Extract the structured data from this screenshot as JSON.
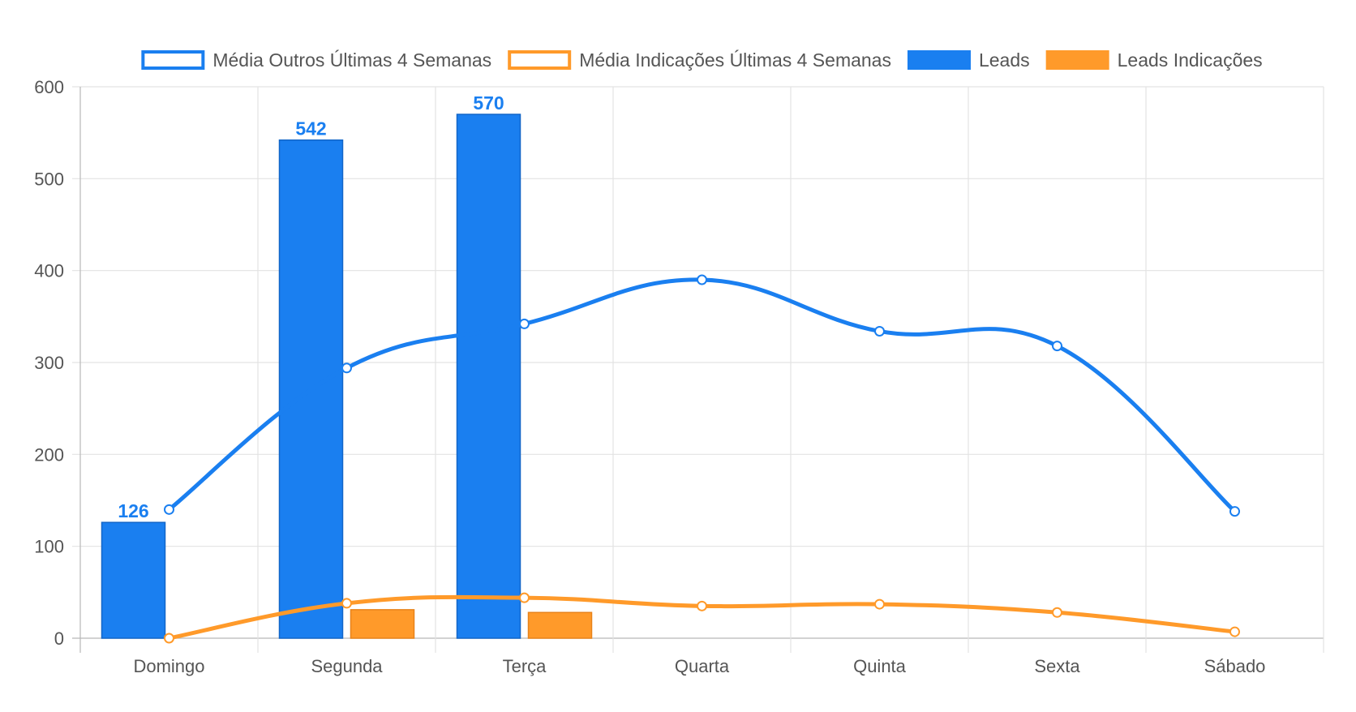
{
  "chart_data": {
    "type": "bar",
    "categories": [
      "Domingo",
      "Segunda",
      "Terça",
      "Quarta",
      "Quinta",
      "Sexta",
      "Sábado"
    ],
    "ylim": [
      0,
      600
    ],
    "yticks": [
      0,
      100,
      200,
      300,
      400,
      500,
      600
    ],
    "grid": true,
    "legend_position": "top",
    "series": [
      {
        "name": "Média Outros Últimas 4 Semanas",
        "type": "line",
        "color": "#1a7ff0",
        "values": [
          140,
          294,
          342,
          390,
          334,
          318,
          138
        ]
      },
      {
        "name": "Média Indicações Últimas 4 Semanas",
        "type": "line",
        "color": "#ff9a2a",
        "values": [
          0,
          38,
          44,
          35,
          37,
          28,
          7
        ]
      },
      {
        "name": "Leads",
        "type": "bar",
        "color": "#1a7ff0",
        "values": [
          126,
          542,
          570,
          null,
          null,
          null,
          null
        ],
        "data_labels": [
          "126",
          "542",
          "570",
          "",
          "",
          "",
          ""
        ]
      },
      {
        "name": "Leads Indicações",
        "type": "bar",
        "color": "#ff9a2a",
        "values": [
          null,
          31,
          28,
          null,
          null,
          null,
          null
        ]
      }
    ]
  }
}
